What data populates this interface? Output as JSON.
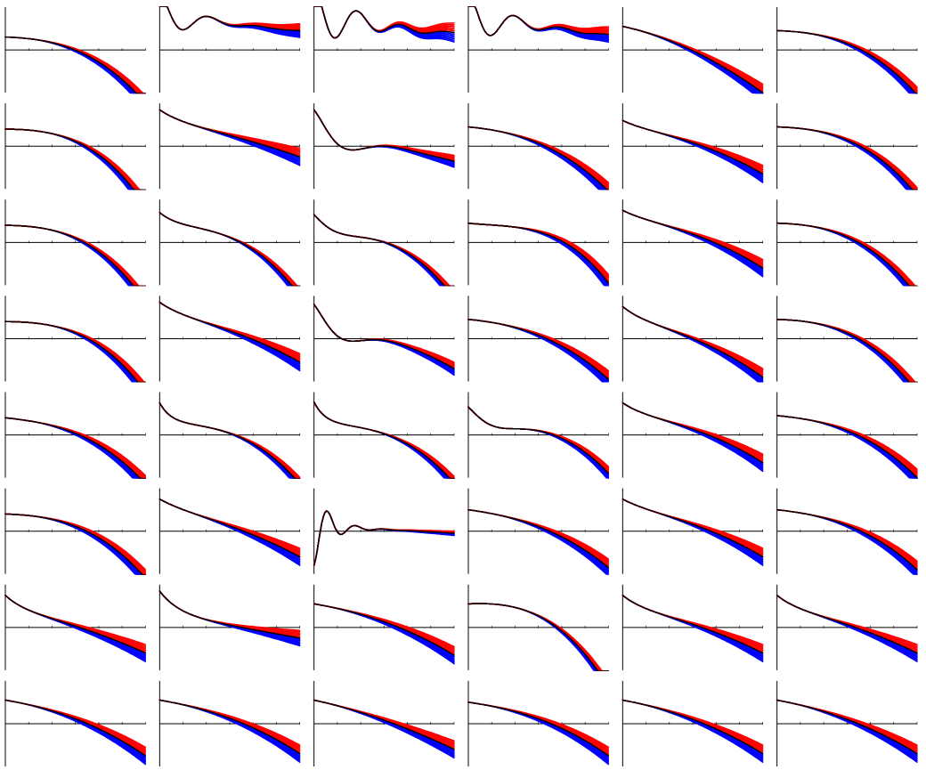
{
  "chart_data": {
    "type": "line",
    "layout": {
      "rows": 8,
      "cols": 6
    },
    "grid": false,
    "legend": "none",
    "axes": {
      "xlim": [
        0,
        1
      ],
      "ylim": [
        -1,
        1
      ],
      "xticks": 6
    },
    "colors": {
      "reference": "#000000",
      "upper": "#ff0000",
      "lower": "#0000ff",
      "axis": "#000000"
    },
    "family": {
      "offsets": [
        -6,
        -5,
        -4,
        -3,
        -2,
        -1,
        0,
        1,
        2,
        3,
        4,
        5,
        6
      ],
      "reference_offset": 0
    },
    "panels": [
      {
        "row": 0,
        "col": 0,
        "kind": "poly",
        "base": [
          0.3,
          -0.1,
          -0.6,
          -0.85
        ],
        "spread": 0.18,
        "origin": 0.2
      },
      {
        "row": 0,
        "col": 1,
        "kind": "osc",
        "base": [
          0.75,
          -0.05,
          -0.6,
          0.35
        ],
        "spread": 0.16,
        "origin": 0.3,
        "osc": {
          "amp": 0.6,
          "freq": 2.8,
          "decay": 5,
          "phase": 0
        }
      },
      {
        "row": 0,
        "col": 2,
        "kind": "osc",
        "base": [
          0.75,
          -0.1,
          -0.85,
          0.6
        ],
        "spread": 0.22,
        "origin": 0.3,
        "osc": {
          "amp": 0.75,
          "freq": 3.2,
          "decay": 3.5,
          "phase": 0
        }
      },
      {
        "row": 0,
        "col": 3,
        "kind": "osc",
        "base": [
          0.7,
          -0.05,
          -0.65,
          0.35
        ],
        "spread": 0.18,
        "origin": 0.3,
        "osc": {
          "amp": 0.65,
          "freq": 3,
          "decay": 4,
          "phase": 0
        }
      },
      {
        "row": 0,
        "col": 4,
        "kind": "poly",
        "base": [
          0.55,
          -0.7,
          -0.9,
          0.05
        ],
        "spread": 0.2,
        "origin": 0.1
      },
      {
        "row": 0,
        "col": 5,
        "kind": "poly",
        "base": [
          0.45,
          -0.1,
          -0.6,
          -0.8
        ],
        "spread": 0.18,
        "origin": 0.2
      },
      {
        "row": 1,
        "col": 0,
        "kind": "poly",
        "base": [
          0.4,
          -0.05,
          -0.35,
          -1.4
        ],
        "spread": 0.2,
        "origin": 0.3
      },
      {
        "row": 1,
        "col": 1,
        "kind": "decay",
        "base": [
          0.55,
          -0.45,
          -0.35,
          0
        ],
        "spread": 0.2,
        "origin": 0.2,
        "decay": {
          "amp": 0.3,
          "rate": 6
        }
      },
      {
        "row": 1,
        "col": 2,
        "kind": "osc",
        "base": [
          0.1,
          0,
          -0.45,
          0
        ],
        "spread": 0.14,
        "origin": 0.3,
        "osc": {
          "amp": 0.75,
          "freq": 1.6,
          "decay": 5.5,
          "phase": 0
        }
      },
      {
        "row": 1,
        "col": 3,
        "kind": "poly",
        "base": [
          0.45,
          -0.3,
          -0.65,
          -0.55
        ],
        "spread": 0.2,
        "origin": 0.2
      },
      {
        "row": 1,
        "col": 4,
        "kind": "decay",
        "base": [
          0.45,
          -0.5,
          -0.4,
          -0.2
        ],
        "spread": 0.2,
        "origin": 0.2,
        "decay": {
          "amp": 0.15,
          "rate": 7
        }
      },
      {
        "row": 1,
        "col": 5,
        "kind": "poly",
        "base": [
          0.45,
          -0.1,
          -0.55,
          -0.95
        ],
        "spread": 0.18,
        "origin": 0.2
      },
      {
        "row": 2,
        "col": 0,
        "kind": "poly",
        "base": [
          0.4,
          -0.05,
          -0.45,
          -1.3
        ],
        "spread": 0.18,
        "origin": 0.3
      },
      {
        "row": 2,
        "col": 1,
        "kind": "decay",
        "base": [
          0.35,
          0,
          -0.3,
          -1.3
        ],
        "spread": 0.16,
        "origin": 0.4,
        "decay": {
          "amp": 0.35,
          "rate": 8
        }
      },
      {
        "row": 2,
        "col": 2,
        "kind": "osc",
        "base": [
          0.2,
          0.05,
          -0.15,
          -1.4
        ],
        "spread": 0.16,
        "origin": 0.4,
        "osc": {
          "amp": 0.45,
          "freq": 1.2,
          "decay": 8,
          "phase": 0
        }
      },
      {
        "row": 2,
        "col": 3,
        "kind": "poly",
        "base": [
          0.45,
          -0.35,
          0.85,
          -1.9
        ],
        "spread": 0.2,
        "origin": 0.3
      },
      {
        "row": 2,
        "col": 4,
        "kind": "decay",
        "base": [
          0.6,
          -0.6,
          -0.3,
          -0.3
        ],
        "spread": 0.2,
        "origin": 0.2,
        "decay": {
          "amp": 0.15,
          "rate": 7
        }
      },
      {
        "row": 2,
        "col": 5,
        "kind": "poly",
        "base": [
          0.45,
          -0.1,
          -0.55,
          -1.05
        ],
        "spread": 0.18,
        "origin": 0.2
      },
      {
        "row": 3,
        "col": 0,
        "kind": "poly",
        "base": [
          0.4,
          -0.05,
          -0.3,
          -1.3
        ],
        "spread": 0.2,
        "origin": 0.3
      },
      {
        "row": 3,
        "col": 1,
        "kind": "decay",
        "base": [
          0.55,
          -0.5,
          -0.45,
          -0.15
        ],
        "spread": 0.2,
        "origin": 0.2,
        "decay": {
          "amp": 0.3,
          "rate": 6
        }
      },
      {
        "row": 3,
        "col": 2,
        "kind": "osc",
        "base": [
          0.1,
          0.05,
          -0.55,
          -0.3
        ],
        "spread": 0.15,
        "origin": 0.3,
        "osc": {
          "amp": 0.7,
          "freq": 1.6,
          "decay": 6,
          "phase": 0
        }
      },
      {
        "row": 3,
        "col": 3,
        "kind": "poly",
        "base": [
          0.45,
          -0.3,
          -0.65,
          -0.45
        ],
        "spread": 0.2,
        "origin": 0.2
      },
      {
        "row": 3,
        "col": 4,
        "kind": "decay",
        "base": [
          0.45,
          -0.6,
          -0.5,
          -0.25
        ],
        "spread": 0.2,
        "origin": 0.2,
        "decay": {
          "amp": 0.3,
          "rate": 7
        }
      },
      {
        "row": 3,
        "col": 5,
        "kind": "poly",
        "base": [
          0.45,
          -0.1,
          -0.55,
          -1.05
        ],
        "spread": 0.18,
        "origin": 0.2
      },
      {
        "row": 4,
        "col": 0,
        "kind": "poly",
        "base": [
          0.4,
          -0.35,
          -0.3,
          -0.9
        ],
        "spread": 0.2,
        "origin": 0.2
      },
      {
        "row": 4,
        "col": 1,
        "kind": "decay",
        "base": [
          0.25,
          0,
          -0.3,
          -1.1
        ],
        "spread": 0.16,
        "origin": 0.4,
        "decay": {
          "amp": 0.5,
          "rate": 12
        }
      },
      {
        "row": 4,
        "col": 2,
        "kind": "decay",
        "base": [
          0.22,
          0.05,
          -0.35,
          -1.05
        ],
        "spread": 0.16,
        "origin": 0.4,
        "decay": {
          "amp": 0.55,
          "rate": 12
        }
      },
      {
        "row": 4,
        "col": 3,
        "kind": "osc",
        "base": [
          0.2,
          0.05,
          0.15,
          -1.3
        ],
        "spread": 0.16,
        "origin": 0.4,
        "osc": {
          "amp": 0.45,
          "freq": 1.4,
          "decay": 7,
          "phase": 0
        }
      },
      {
        "row": 4,
        "col": 4,
        "kind": "decay",
        "base": [
          0.5,
          -0.5,
          -0.35,
          -0.3
        ],
        "spread": 0.2,
        "origin": 0.2,
        "decay": {
          "amp": 0.25,
          "rate": 7
        }
      },
      {
        "row": 4,
        "col": 5,
        "kind": "poly",
        "base": [
          0.45,
          -0.3,
          -0.45,
          -0.7
        ],
        "spread": 0.2,
        "origin": 0.2
      },
      {
        "row": 5,
        "col": 0,
        "kind": "poly",
        "base": [
          0.4,
          -0.1,
          -0.5,
          -0.9
        ],
        "spread": 0.2,
        "origin": 0.2
      },
      {
        "row": 5,
        "col": 1,
        "kind": "decay",
        "base": [
          0.55,
          -0.65,
          -0.4,
          -0.1
        ],
        "spread": 0.2,
        "origin": 0.2,
        "decay": {
          "amp": 0.2,
          "rate": 6
        }
      },
      {
        "row": 5,
        "col": 2,
        "kind": "spike",
        "base": [
          0.1,
          -0.1,
          -0.05,
          0
        ],
        "spread": 0.05,
        "origin": 0.3,
        "osc": {
          "amp": -0.9,
          "freq": 5,
          "decay": 9,
          "phase": 0
        }
      },
      {
        "row": 5,
        "col": 3,
        "kind": "poly",
        "base": [
          0.5,
          -0.45,
          -0.45,
          -0.45
        ],
        "spread": 0.2,
        "origin": 0.2
      },
      {
        "row": 5,
        "col": 4,
        "kind": "decay",
        "base": [
          0.55,
          -0.55,
          -0.4,
          -0.2
        ],
        "spread": 0.2,
        "origin": 0.2,
        "decay": {
          "amp": 0.2,
          "rate": 6
        }
      },
      {
        "row": 5,
        "col": 5,
        "kind": "poly",
        "base": [
          0.5,
          -0.35,
          -0.45,
          -0.6
        ],
        "spread": 0.2,
        "origin": 0.2
      },
      {
        "row": 6,
        "col": 0,
        "kind": "decay",
        "base": [
          0.45,
          -0.7,
          -0.25,
          -0.1
        ],
        "spread": 0.2,
        "origin": 0.15,
        "decay": {
          "amp": 0.3,
          "rate": 8
        }
      },
      {
        "row": 6,
        "col": 1,
        "kind": "decay",
        "base": [
          0.3,
          -0.5,
          -0.05,
          0
        ],
        "spread": 0.18,
        "origin": 0.25,
        "decay": {
          "amp": 0.55,
          "rate": 7
        }
      },
      {
        "row": 6,
        "col": 2,
        "kind": "poly",
        "base": [
          0.55,
          -0.55,
          -0.5,
          -0.15
        ],
        "spread": 0.2,
        "origin": 0.1
      },
      {
        "row": 6,
        "col": 3,
        "kind": "poly",
        "base": [
          0.55,
          0.15,
          -0.75,
          -1.35
        ],
        "spread": 0.16,
        "origin": 0.35
      },
      {
        "row": 6,
        "col": 4,
        "kind": "decay",
        "base": [
          0.45,
          -0.55,
          -0.4,
          -0.1
        ],
        "spread": 0.2,
        "origin": 0.2,
        "decay": {
          "amp": 0.3,
          "rate": 7
        }
      },
      {
        "row": 6,
        "col": 5,
        "kind": "decay",
        "base": [
          0.45,
          -0.55,
          -0.45,
          -0.05
        ],
        "spread": 0.2,
        "origin": 0.2,
        "decay": {
          "amp": 0.3,
          "rate": 7
        }
      },
      {
        "row": 7,
        "col": 0,
        "kind": "poly",
        "base": [
          0.55,
          -0.55,
          -0.55,
          -0.2
        ],
        "spread": 0.2,
        "origin": 0.1
      },
      {
        "row": 7,
        "col": 1,
        "kind": "poly",
        "base": [
          0.55,
          -0.55,
          -0.5,
          -0.2
        ],
        "spread": 0.2,
        "origin": 0.1
      },
      {
        "row": 7,
        "col": 2,
        "kind": "poly",
        "base": [
          0.55,
          -0.7,
          -0.5,
          0.05
        ],
        "spread": 0.2,
        "origin": 0.1
      },
      {
        "row": 7,
        "col": 3,
        "kind": "poly",
        "base": [
          0.5,
          -0.45,
          -0.5,
          -0.3
        ],
        "spread": 0.2,
        "origin": 0.1
      },
      {
        "row": 7,
        "col": 4,
        "kind": "poly",
        "base": [
          0.55,
          -0.6,
          -0.55,
          -0.1
        ],
        "spread": 0.2,
        "origin": 0.1
      },
      {
        "row": 7,
        "col": 5,
        "kind": "poly",
        "base": [
          0.55,
          -0.6,
          -0.55,
          -0.1
        ],
        "spread": 0.2,
        "origin": 0.1
      }
    ]
  }
}
